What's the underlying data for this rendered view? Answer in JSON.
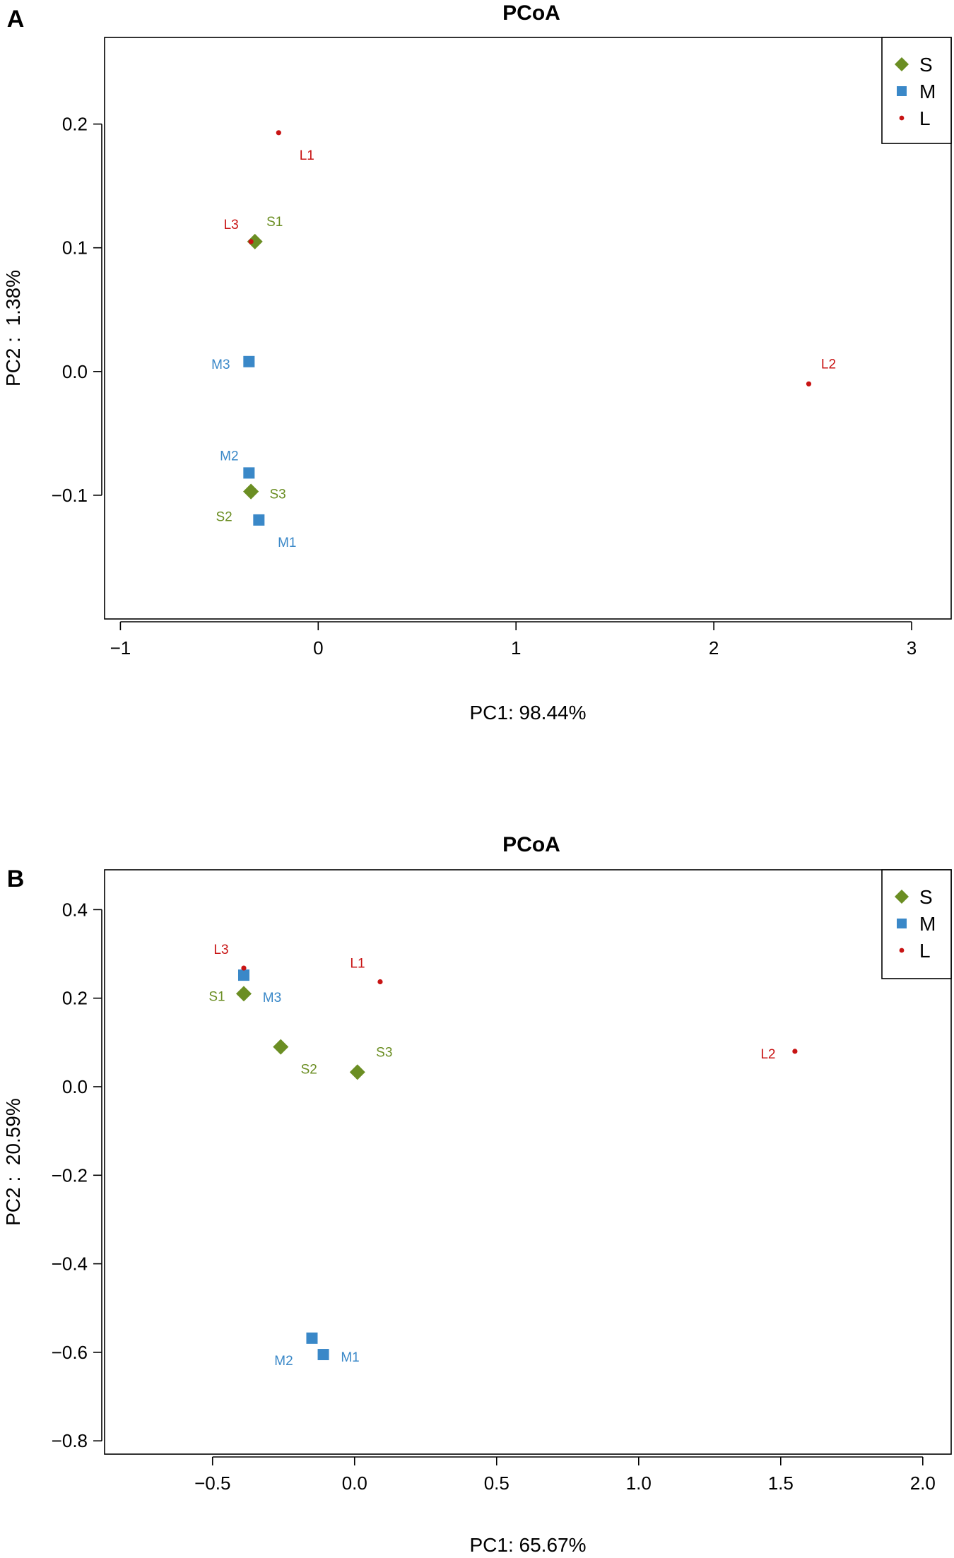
{
  "chart_data": [
    {
      "panel": "A",
      "type": "scatter",
      "title": "PCoA",
      "xlabel": "PC1: 98.44%",
      "ylabel": "PC2 :  1.38%",
      "xlim": [
        -1.08,
        3.2
      ],
      "ylim": [
        -0.2,
        0.27
      ],
      "xticks": [
        -1,
        0,
        1,
        2,
        3
      ],
      "yticks": [
        -0.1,
        0.0,
        0.1,
        0.2
      ],
      "xtick_labels": [
        "−1",
        "0",
        "1",
        "2",
        "3"
      ],
      "ytick_labels": [
        "−0.1",
        "0.0",
        "0.1",
        "0.2"
      ],
      "legend_position": "top-right",
      "legend": [
        {
          "name": "S",
          "color": "#6b8e23",
          "marker": "diamond"
        },
        {
          "name": "M",
          "color": "#3a88c8",
          "marker": "square"
        },
        {
          "name": "L",
          "color": "#c81414",
          "marker": "dot"
        }
      ],
      "series": [
        {
          "name": "S",
          "color": "#6b8e23",
          "marker": "diamond",
          "points": [
            {
              "label": "S1",
              "x": -0.32,
              "y": 0.105,
              "label_pos": "above-right"
            },
            {
              "label": "S2",
              "x": -0.34,
              "y": -0.097,
              "label_pos": "below-left"
            },
            {
              "label": "S3",
              "x": -0.34,
              "y": -0.097,
              "label_pos": "right"
            }
          ]
        },
        {
          "name": "M",
          "color": "#3a88c8",
          "marker": "square",
          "points": [
            {
              "label": "M1",
              "x": -0.3,
              "y": -0.12,
              "label_pos": "below-right"
            },
            {
              "label": "M2",
              "x": -0.35,
              "y": -0.082,
              "label_pos": "above-left"
            },
            {
              "label": "M3",
              "x": -0.35,
              "y": 0.008,
              "label_pos": "left"
            }
          ]
        },
        {
          "name": "L",
          "color": "#c81414",
          "marker": "dot",
          "points": [
            {
              "label": "L1",
              "x": -0.2,
              "y": 0.193,
              "label_pos": "below-right"
            },
            {
              "label": "L2",
              "x": 2.48,
              "y": -0.01,
              "label_pos": "above-right"
            },
            {
              "label": "L3",
              "x": -0.34,
              "y": 0.105,
              "label_pos": "above-left"
            }
          ]
        }
      ]
    },
    {
      "panel": "B",
      "type": "scatter",
      "title": "PCoA",
      "xlabel": "PC1: 65.67%",
      "ylabel": "PC2 :  20.59%",
      "xlim": [
        -0.88,
        2.1
      ],
      "ylim": [
        -0.83,
        0.49
      ],
      "xticks": [
        -0.5,
        0.0,
        0.5,
        1.0,
        1.5,
        2.0
      ],
      "yticks": [
        -0.8,
        -0.6,
        -0.4,
        -0.2,
        0.0,
        0.2,
        0.4
      ],
      "xtick_labels": [
        "−0.5",
        "0.0",
        "0.5",
        "1.0",
        "1.5",
        "2.0"
      ],
      "ytick_labels": [
        "−0.8",
        "−0.6",
        "−0.4",
        "−0.2",
        "0.0",
        "0.2",
        "0.4"
      ],
      "legend_position": "top-right",
      "legend": [
        {
          "name": "S",
          "color": "#6b8e23",
          "marker": "diamond"
        },
        {
          "name": "M",
          "color": "#3a88c8",
          "marker": "square"
        },
        {
          "name": "L",
          "color": "#c81414",
          "marker": "dot"
        }
      ],
      "series": [
        {
          "name": "S",
          "color": "#6b8e23",
          "marker": "diamond",
          "points": [
            {
              "label": "S1",
              "x": -0.39,
              "y": 0.21,
              "label_pos": "left"
            },
            {
              "label": "S2",
              "x": -0.26,
              "y": 0.09,
              "label_pos": "below-right"
            },
            {
              "label": "S3",
              "x": 0.01,
              "y": 0.033,
              "label_pos": "above-right"
            }
          ]
        },
        {
          "name": "M",
          "color": "#3a88c8",
          "marker": "square",
          "points": [
            {
              "label": "M1",
              "x": -0.11,
              "y": -0.605,
              "label_pos": "right"
            },
            {
              "label": "M2",
              "x": -0.15,
              "y": -0.568,
              "label_pos": "below-left"
            },
            {
              "label": "M3",
              "x": -0.39,
              "y": 0.252,
              "label_pos": "below-right"
            }
          ]
        },
        {
          "name": "L",
          "color": "#c81414",
          "marker": "dot",
          "points": [
            {
              "label": "L1",
              "x": 0.09,
              "y": 0.237,
              "label_pos": "above-left"
            },
            {
              "label": "L2",
              "x": 1.55,
              "y": 0.08,
              "label_pos": "left"
            },
            {
              "label": "L3",
              "x": -0.39,
              "y": 0.268,
              "label_pos": "above-left"
            }
          ]
        }
      ]
    }
  ]
}
